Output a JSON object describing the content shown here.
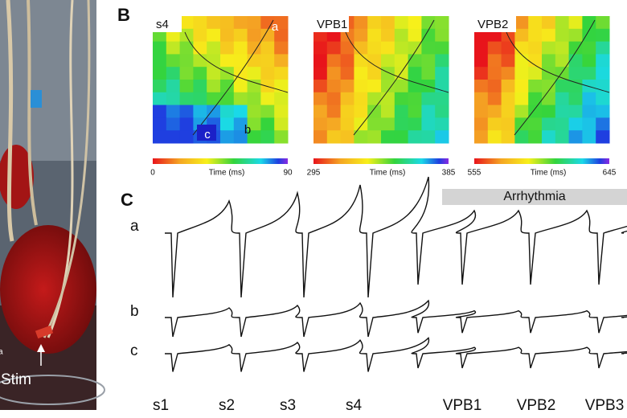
{
  "photo": {
    "label": "Stim",
    "edge_label": "a"
  },
  "panels": {
    "B": {
      "label": "B",
      "maps": [
        {
          "title": "s4",
          "scale_min": 0,
          "scale_max": 90,
          "axis_label": "Time (ms)",
          "annotations": [
            "a",
            "b",
            "c"
          ]
        },
        {
          "title": "VPB1",
          "scale_min": 295,
          "scale_max": 385,
          "axis_label": "Time (ms)"
        },
        {
          "title": "VPB2",
          "scale_min": 555,
          "scale_max": 645,
          "axis_label": "Time (ms)"
        }
      ]
    },
    "C": {
      "label": "C",
      "band": "Arrhythmia",
      "traces": [
        "a",
        "b",
        "c"
      ],
      "beats": [
        "s1",
        "s2",
        "s3",
        "s4",
        "VPB1",
        "VPB2",
        "VPB3"
      ]
    }
  }
}
